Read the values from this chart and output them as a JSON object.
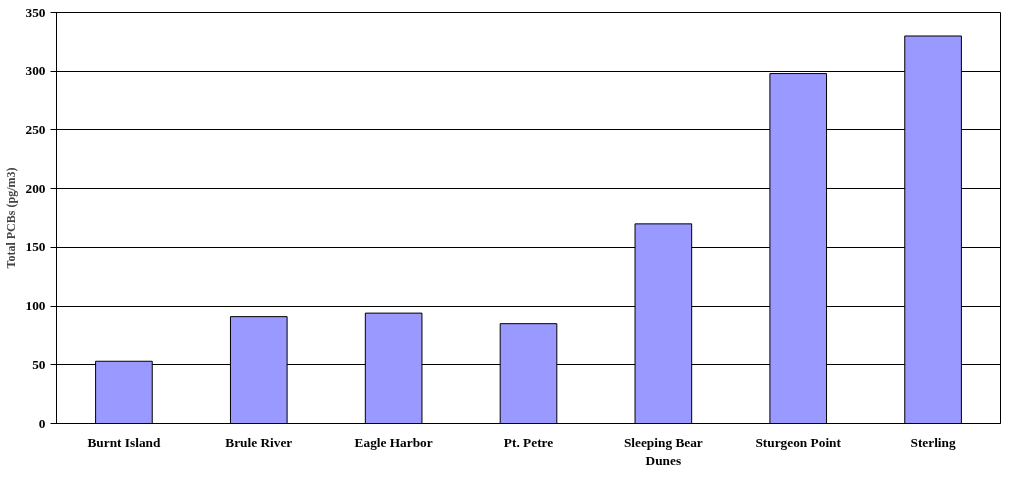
{
  "chart_data": {
    "type": "bar",
    "ylabel": "Total PCBs (pg/m3)",
    "categories": [
      "Burnt Island",
      "Brule River",
      "Eagle Harbor",
      "Pt. Petre",
      "Sleeping Bear Dunes",
      "Sturgeon Point",
      "Sterling"
    ],
    "values": [
      53,
      91,
      94,
      85,
      170,
      298,
      330
    ],
    "color": "#9999ff",
    "ylim": [
      0,
      350
    ],
    "yticks": [
      0,
      50,
      100,
      150,
      200,
      250,
      300,
      350
    ],
    "grid": "y"
  }
}
